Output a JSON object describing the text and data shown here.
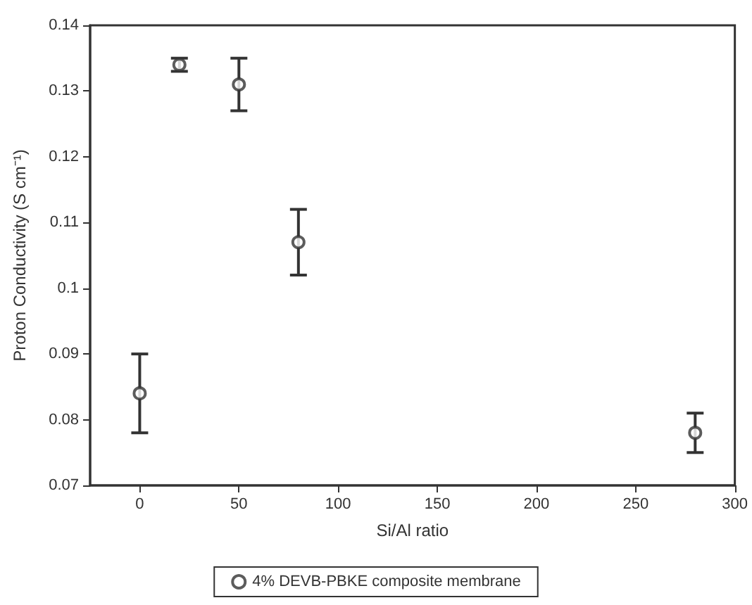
{
  "chart_data": {
    "type": "scatter",
    "xlabel": "Si/Al ratio",
    "ylabel": "Proton Conductivity (S cm⁻¹)",
    "x": [
      0,
      20,
      50,
      80,
      280
    ],
    "series": [
      {
        "name": "4% DEVB-PBKE composite membrane",
        "color": "#333333",
        "values": [
          0.084,
          0.134,
          0.131,
          0.107,
          0.078
        ],
        "errors": [
          0.006,
          0.001,
          0.004,
          0.005,
          0.003
        ]
      }
    ],
    "xlim": [
      -25,
      300
    ],
    "xticks": [
      0,
      50,
      100,
      150,
      200,
      250,
      300
    ],
    "ylim": [
      0.07,
      0.14
    ],
    "yticks": [
      0.07,
      0.08,
      0.09,
      0.1,
      0.11,
      0.12,
      0.13,
      0.14
    ],
    "grid": false,
    "legend": "bottom",
    "marker": "circle"
  }
}
